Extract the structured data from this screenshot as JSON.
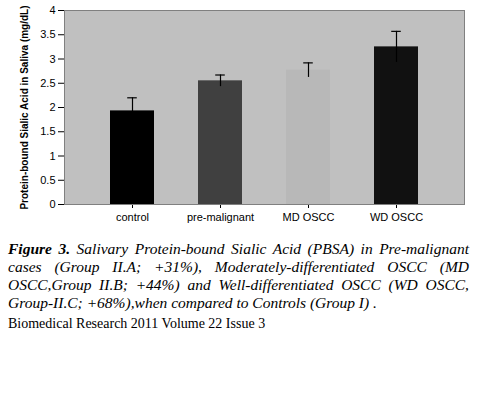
{
  "chart_data": {
    "type": "bar",
    "y_label": "Protein-bound Sialic Acid in Saliva (mg/dL)",
    "categories": [
      "control",
      "pre-malignant",
      "MD OSCC",
      "WD OSCC"
    ],
    "values": [
      1.93,
      2.55,
      2.77,
      3.25
    ],
    "errors": [
      0.27,
      0.12,
      0.15,
      0.32
    ],
    "colors": [
      "#000000",
      "#404040",
      "#b8b8b8",
      "#111111"
    ],
    "ylim": [
      0,
      4
    ],
    "yticks": [
      0,
      0.5,
      1,
      1.5,
      2,
      2.5,
      3,
      3.5,
      4
    ],
    "grid": false,
    "caption_label": "Figure 3.",
    "caption": "Salivary Protein-bound Sialic Acid (PBSA) in Pre-malignant cases (Group II.A; +31%), Moderately-differentiated OSCC (MD OSCC,Group II.B; +44%) and Well-differentiated OSCC (WD OSCC, Group-II.C; +68%),when compared to Controls (Group I) .",
    "source": "Biomedical Research 2011 Volume 22 Issue 3"
  }
}
